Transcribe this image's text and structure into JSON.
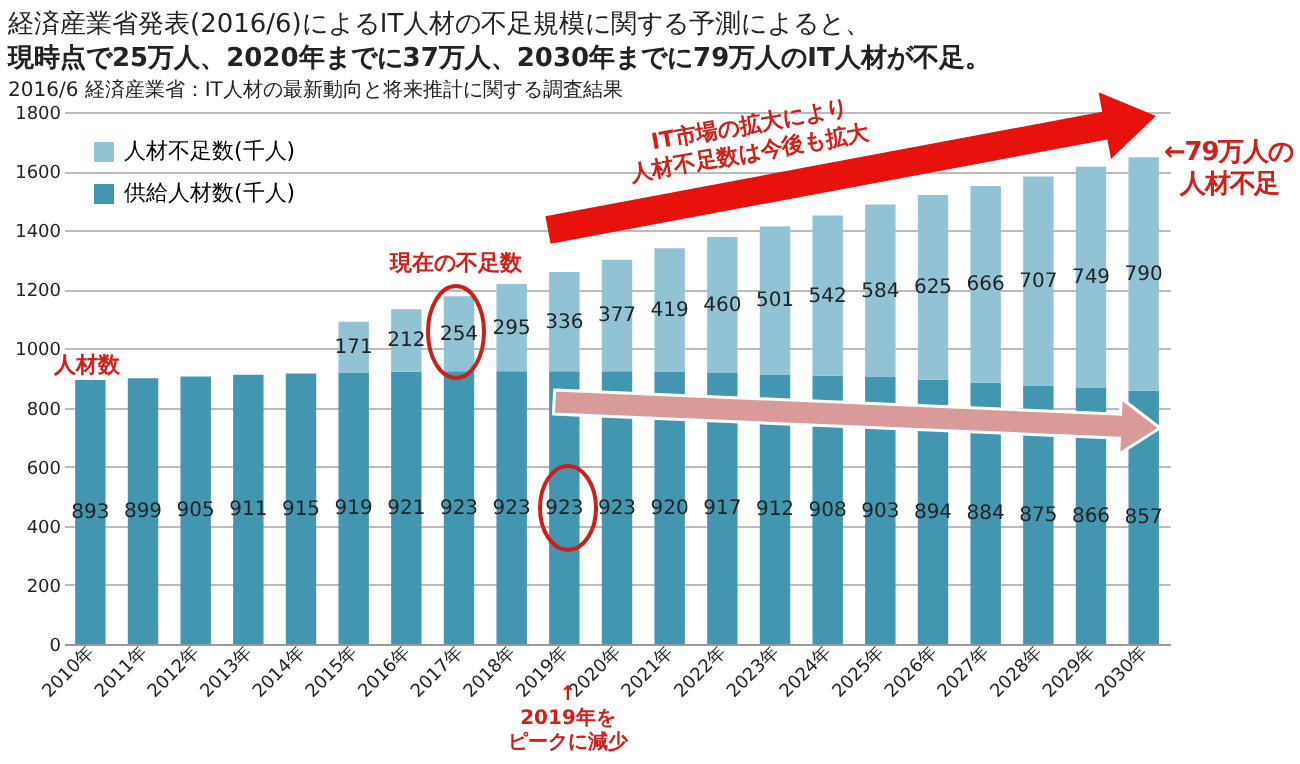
{
  "chart_data": {
    "type": "bar",
    "stacked": true,
    "title": "経済産業省発表(2016/6)によるIT人材の不足規模に関する予測によると、",
    "subtitle": "現時点で25万人、2020年までに37万人、2030年までに79万人のIT人材が不足。",
    "categories": [
      "2010年",
      "2011年",
      "2012年",
      "2013年",
      "2014年",
      "2015年",
      "2016年",
      "2017年",
      "2018年",
      "2019年",
      "2020年",
      "2021年",
      "2022年",
      "2023年",
      "2024年",
      "2025年",
      "2026年",
      "2027年",
      "2028年",
      "2029年",
      "2030年"
    ],
    "series": [
      {
        "name": "供給人材数(千人)",
        "color": "#4396b0",
        "values": [
          893,
          899,
          905,
          911,
          915,
          919,
          921,
          923,
          923,
          923,
          923,
          920,
          917,
          912,
          908,
          903,
          894,
          884,
          875,
          866,
          857
        ]
      },
      {
        "name": "人材不足数(千人)",
        "color": "#92c3d4",
        "values": [
          null,
          null,
          null,
          null,
          null,
          171,
          212,
          254,
          295,
          336,
          377,
          419,
          460,
          501,
          542,
          584,
          625,
          666,
          707,
          749,
          790
        ]
      }
    ],
    "ylim": [
      0,
      1800
    ],
    "yticks": [
      0,
      200,
      400,
      600,
      800,
      1000,
      1200,
      1400,
      1600,
      1800
    ],
    "grid": "y",
    "legend": "top left",
    "data_labels": true,
    "annotations": [
      "2016/6 経済産業省：IT人材の最新動向と将来推計に関する調査結果",
      "人材数",
      "現在の不足数",
      "IT市場の拡大により",
      "人材不足数は今後も拡大",
      "←79万人の",
      "人材不足",
      "↑",
      "2019年を",
      "ピークに減少"
    ]
  }
}
